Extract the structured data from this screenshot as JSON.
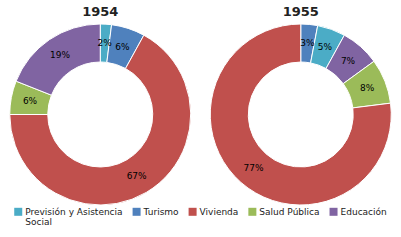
{
  "chart_data": [
    {
      "type": "pie",
      "title": "1954",
      "categories": [
        "Previsión y Asistencia\nSocial",
        "Turismo",
        "Vivienda",
        "Salud Pública",
        "Educación"
      ],
      "values": [
        2,
        6,
        67,
        6,
        19
      ],
      "value_labels": [
        "2%",
        "6%",
        "67%",
        "6%",
        "19%"
      ],
      "colors": [
        "#4bacc6",
        "#4f81bd",
        "#c0504d",
        "#9bbb59",
        "#8064a2"
      ],
      "data_labels": true,
      "legend": "bottom"
    },
    {
      "type": "pie",
      "title": "1955",
      "categories": [
        "Turismo",
        "Previsión y Asistencia\nSocial",
        "Educación",
        "Salud Pública",
        "Vivienda"
      ],
      "values": [
        3,
        5,
        7,
        8,
        77
      ],
      "value_labels": [
        "3%",
        "5%",
        "7%",
        "8%",
        "77%"
      ],
      "colors": [
        "#4f81bd",
        "#4bacc6",
        "#8064a2",
        "#9bbb59",
        "#c0504d"
      ],
      "data_labels": true
    }
  ]
}
